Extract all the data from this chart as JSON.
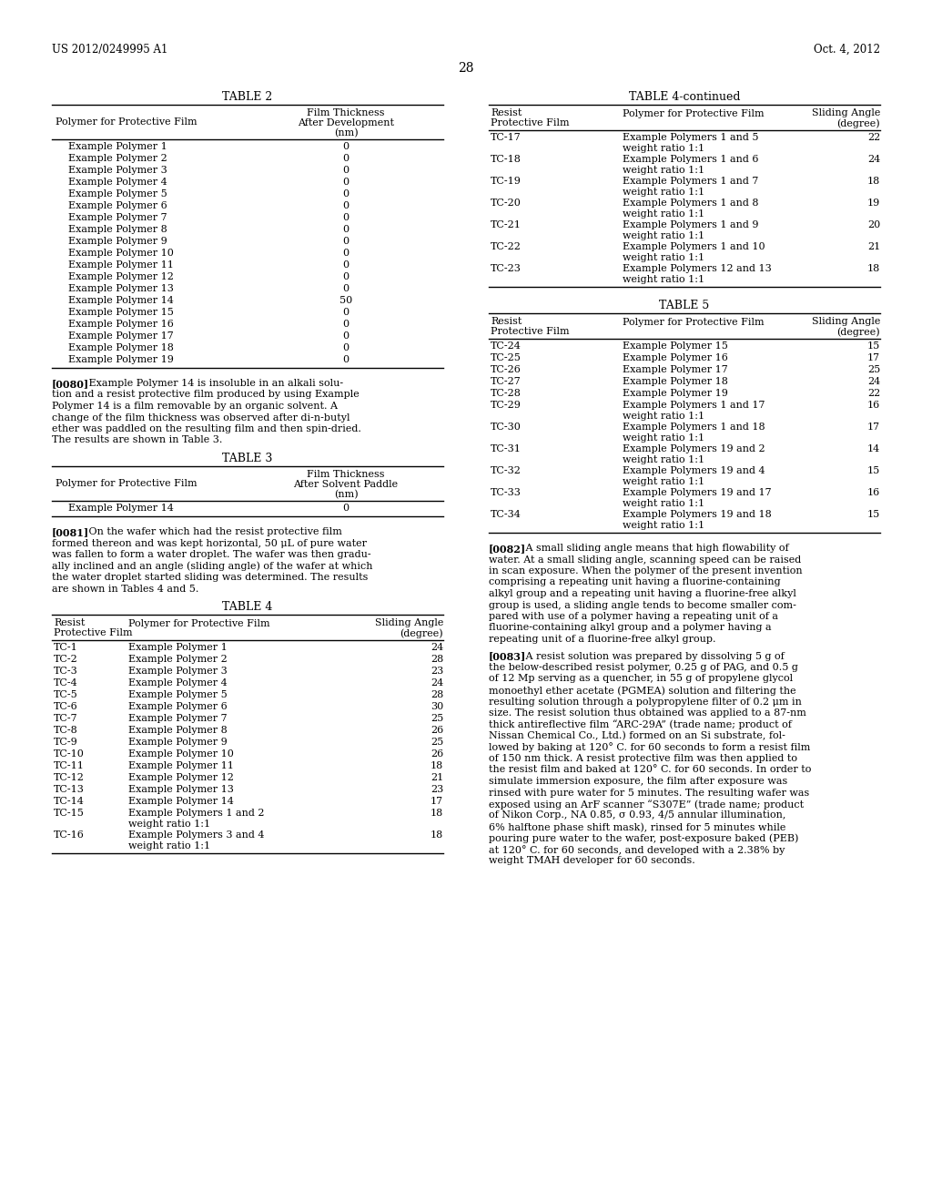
{
  "header_left": "US 2012/0249995 A1",
  "header_right": "Oct. 4, 2012",
  "page_number": "28",
  "background_color": "#ffffff",
  "table2_title": "TABLE 2",
  "table2_rows": [
    [
      "Example Polymer 1",
      "0"
    ],
    [
      "Example Polymer 2",
      "0"
    ],
    [
      "Example Polymer 3",
      "0"
    ],
    [
      "Example Polymer 4",
      "0"
    ],
    [
      "Example Polymer 5",
      "0"
    ],
    [
      "Example Polymer 6",
      "0"
    ],
    [
      "Example Polymer 7",
      "0"
    ],
    [
      "Example Polymer 8",
      "0"
    ],
    [
      "Example Polymer 9",
      "0"
    ],
    [
      "Example Polymer 10",
      "0"
    ],
    [
      "Example Polymer 11",
      "0"
    ],
    [
      "Example Polymer 12",
      "0"
    ],
    [
      "Example Polymer 13",
      "0"
    ],
    [
      "Example Polymer 14",
      "50"
    ],
    [
      "Example Polymer 15",
      "0"
    ],
    [
      "Example Polymer 16",
      "0"
    ],
    [
      "Example Polymer 17",
      "0"
    ],
    [
      "Example Polymer 18",
      "0"
    ],
    [
      "Example Polymer 19",
      "0"
    ]
  ],
  "para0080_tag": "[0080]",
  "para0080_body": "   Example Polymer 14 is insoluble in an alkali solu-\ntion and a resist protective film produced by using Example\nPolymer 14 is a film removable by an organic solvent. A\nchange of the film thickness was observed after di-n-butyl\nether was paddled on the resulting film and then spin-dried.\nThe results are shown in Table 3.",
  "table3_title": "TABLE 3",
  "table3_rows": [
    [
      "Example Polymer 14",
      "0"
    ]
  ],
  "para0081_tag": "[0081]",
  "para0081_body": "   On the wafer which had the resist protective film\nformed thereon and was kept horizontal, 50 μL of pure water\nwas fallen to form a water droplet. The wafer was then gradu-\nally inclined and an angle (sliding angle) of the wafer at which\nthe water droplet started sliding was determined. The results\nare shown in Tables 4 and 5.",
  "table4_title": "TABLE 4",
  "table4_rows": [
    [
      "TC-1",
      "Example Polymer 1",
      "24"
    ],
    [
      "TC-2",
      "Example Polymer 2",
      "28"
    ],
    [
      "TC-3",
      "Example Polymer 3",
      "23"
    ],
    [
      "TC-4",
      "Example Polymer 4",
      "24"
    ],
    [
      "TC-5",
      "Example Polymer 5",
      "28"
    ],
    [
      "TC-6",
      "Example Polymer 6",
      "30"
    ],
    [
      "TC-7",
      "Example Polymer 7",
      "25"
    ],
    [
      "TC-8",
      "Example Polymer 8",
      "26"
    ],
    [
      "TC-9",
      "Example Polymer 9",
      "25"
    ],
    [
      "TC-10",
      "Example Polymer 10",
      "26"
    ],
    [
      "TC-11",
      "Example Polymer 11",
      "18"
    ],
    [
      "TC-12",
      "Example Polymer 12",
      "21"
    ],
    [
      "TC-13",
      "Example Polymer 13",
      "23"
    ],
    [
      "TC-14",
      "Example Polymer 14",
      "17"
    ],
    [
      "TC-15",
      "Example Polymers 1 and 2\nweight ratio 1:1",
      "18"
    ],
    [
      "TC-16",
      "Example Polymers 3 and 4\nweight ratio 1:1",
      "18"
    ]
  ],
  "table4cont_title": "TABLE 4-continued",
  "table4cont_rows": [
    [
      "TC-17",
      "Example Polymers 1 and 5\nweight ratio 1:1",
      "22"
    ],
    [
      "TC-18",
      "Example Polymers 1 and 6\nweight ratio 1:1",
      "24"
    ],
    [
      "TC-19",
      "Example Polymers 1 and 7\nweight ratio 1:1",
      "18"
    ],
    [
      "TC-20",
      "Example Polymers 1 and 8\nweight ratio 1:1",
      "19"
    ],
    [
      "TC-21",
      "Example Polymers 1 and 9\nweight ratio 1:1",
      "20"
    ],
    [
      "TC-22",
      "Example Polymers 1 and 10\nweight ratio 1:1",
      "21"
    ],
    [
      "TC-23",
      "Example Polymers 12 and 13\nweight ratio 1:1",
      "18"
    ]
  ],
  "table5_title": "TABLE 5",
  "table5_rows": [
    [
      "TC-24",
      "Example Polymer 15",
      "15"
    ],
    [
      "TC-25",
      "Example Polymer 16",
      "17"
    ],
    [
      "TC-26",
      "Example Polymer 17",
      "25"
    ],
    [
      "TC-27",
      "Example Polymer 18",
      "24"
    ],
    [
      "TC-28",
      "Example Polymer 19",
      "22"
    ],
    [
      "TC-29",
      "Example Polymers 1 and 17\nweight ratio 1:1",
      "16"
    ],
    [
      "TC-30",
      "Example Polymers 1 and 18\nweight ratio 1:1",
      "17"
    ],
    [
      "TC-31",
      "Example Polymers 19 and 2\nweight ratio 1:1",
      "14"
    ],
    [
      "TC-32",
      "Example Polymers 19 and 4\nweight ratio 1:1",
      "15"
    ],
    [
      "TC-33",
      "Example Polymers 19 and 17\nweight ratio 1:1",
      "16"
    ],
    [
      "TC-34",
      "Example Polymers 19 and 18\nweight ratio 1:1",
      "15"
    ]
  ],
  "para0082_tag": "[0082]",
  "para0082_body": "   A small sliding angle means that high flowability of\nwater. At a small sliding angle, scanning speed can be raised\nin scan exposure. When the polymer of the present invention\ncomprising a repeating unit having a fluorine-containing\nalkyl group and a repeating unit having a fluorine-free alkyl\ngroup is used, a sliding angle tends to become smaller com-\npared with use of a polymer having a repeating unit of a\nfluorine-containing alkyl group and a polymer having a\nrepeating unit of a fluorine-free alkyl group.",
  "para0083_tag": "[0083]",
  "para0083_body": "   A resist solution was prepared by dissolving 5 g of\nthe below-described resist polymer, 0.25 g of PAG, and 0.5 g\nof 12 Mp serving as a quencher, in 55 g of propylene glycol\nmonoethyl ether acetate (PGMEA) solution and filtering the\nresulting solution through a polypropylene filter of 0.2 μm in\nsize. The resist solution thus obtained was applied to a 87-nm\nthick antireflective film “ARC-29A” (trade name; product of\nNissan Chemical Co., Ltd.) formed on an Si substrate, fol-\nlowed by baking at 120° C. for 60 seconds to form a resist film\nof 150 nm thick. A resist protective film was then applied to\nthe resist film and baked at 120° C. for 60 seconds. In order to\nsimulate immersion exposure, the film after exposure was\nrinsed with pure water for 5 minutes. The resulting wafer was\nexposed using an ArF scanner “S307E” (trade name; product\nof Nikon Corp., NA 0.85, σ 0.93, 4/5 annular illumination,\n6% halftone phase shift mask), rinsed for 5 minutes while\npouring pure water to the wafer, post-exposure baked (PEB)\nat 120° C. for 60 seconds, and developed with a 2.38% by\nweight TMAH developer for 60 seconds."
}
